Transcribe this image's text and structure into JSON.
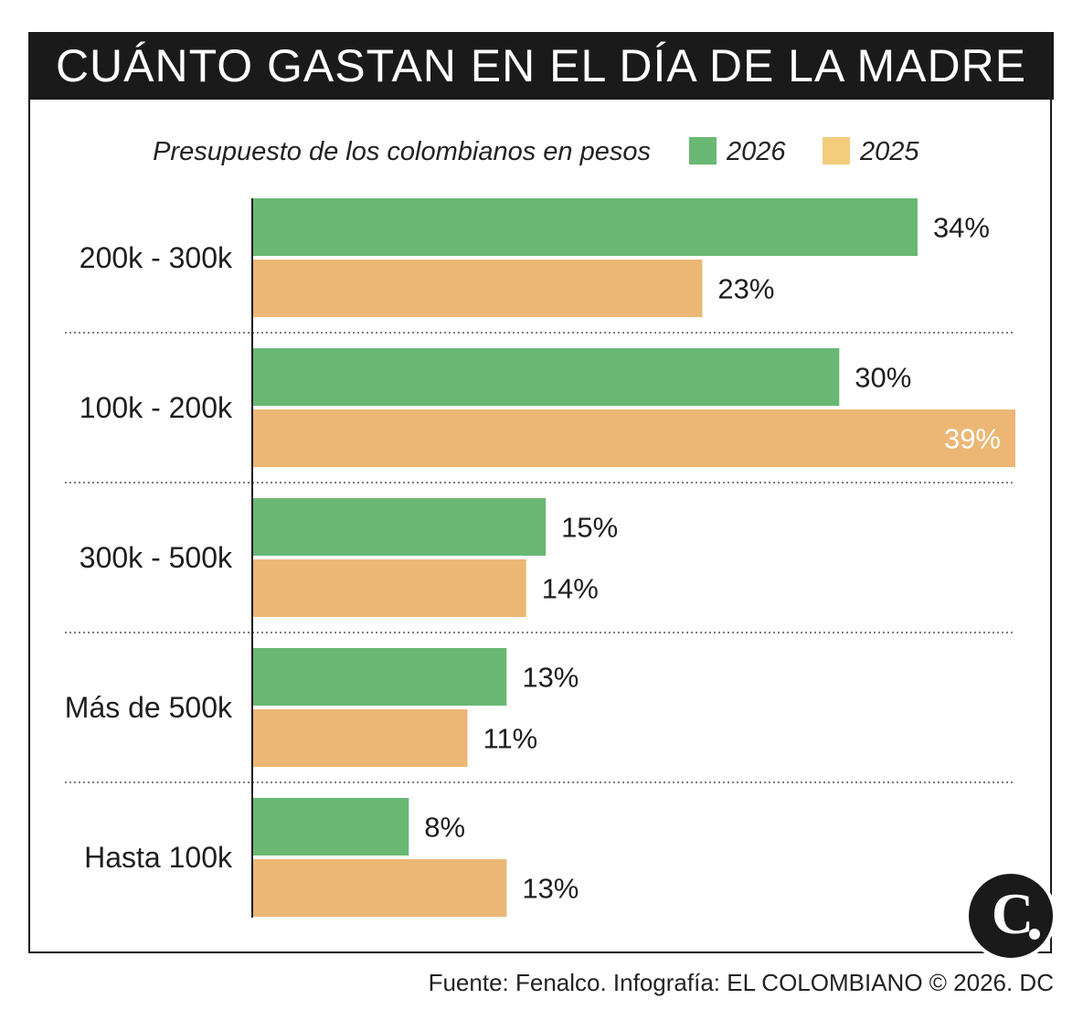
{
  "header": {
    "title": "CUÁNTO GASTAN EN EL DÍA DE LA MADRE"
  },
  "footer": {
    "source": "Fuente: Fenalco. Infografía: EL COLOMBIANO © 2026. DC"
  },
  "logo": {
    "letter": "C",
    "icon": "el-colombiano-logo-icon"
  },
  "colors": {
    "title_bg": "#1a1a1a",
    "series_2026": "#69b874",
    "series_2025": "#ecb775",
    "legend_2025": "#f3cd7b"
  },
  "chart_data": {
    "type": "bar",
    "orientation": "horizontal",
    "subtitle": "Presupuesto de los colombianos en pesos",
    "categories": [
      "200k - 300k",
      "100k - 200k",
      "300k - 500k",
      "Más de 500k",
      "Hasta 100k"
    ],
    "series": [
      {
        "name": "2026",
        "values": [
          34,
          30,
          15,
          13,
          8
        ],
        "labels": [
          "34%",
          "30%",
          "15%",
          "13%",
          "8%"
        ],
        "color": "#69b874"
      },
      {
        "name": "2025",
        "values": [
          23,
          39,
          14,
          11,
          13
        ],
        "labels": [
          "23%",
          "39%",
          "14%",
          "11%",
          "13%"
        ],
        "color": "#ecb775"
      }
    ],
    "xlim": [
      0,
      39
    ],
    "unit": "%",
    "legend_position": "top",
    "grid": false
  }
}
